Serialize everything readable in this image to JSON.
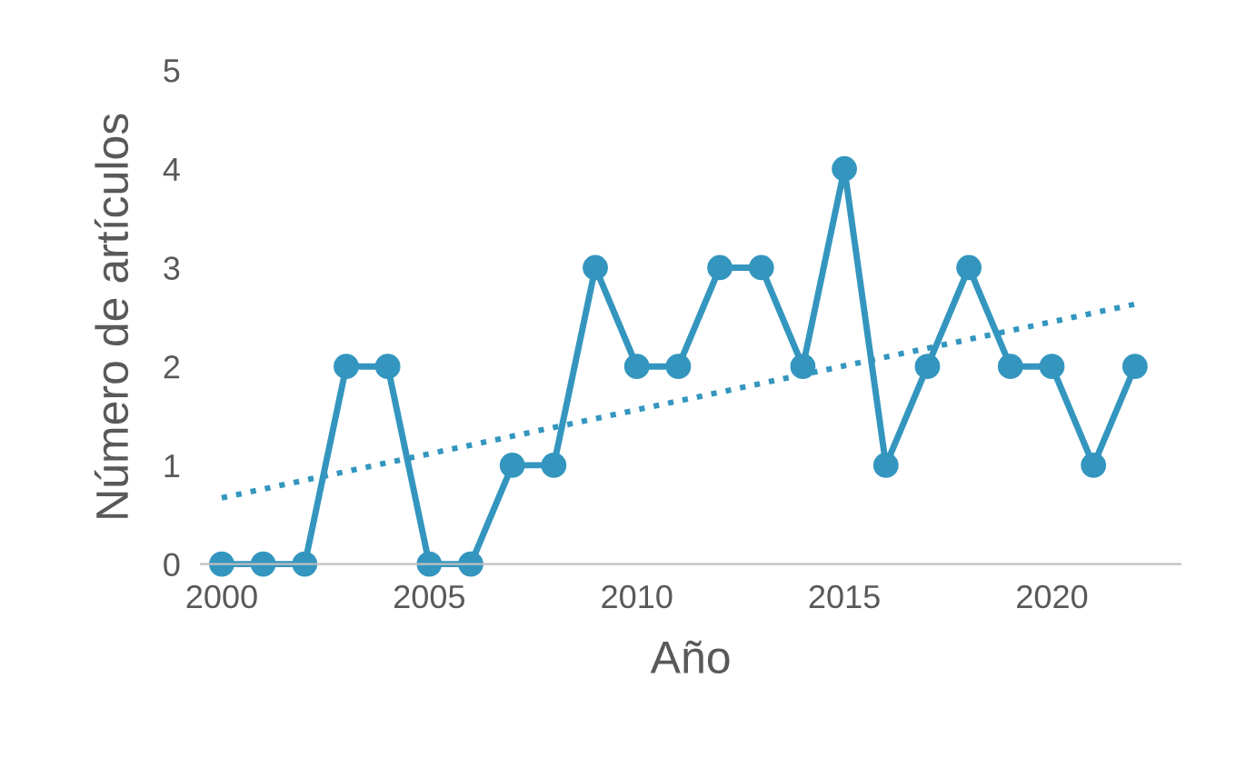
{
  "chart_data": {
    "type": "line",
    "xlabel": "Año",
    "ylabel": "Número de artículos",
    "x": [
      2000,
      2001,
      2002,
      2003,
      2004,
      2005,
      2006,
      2007,
      2008,
      2009,
      2010,
      2011,
      2012,
      2013,
      2014,
      2015,
      2016,
      2017,
      2018,
      2019,
      2020,
      2021,
      2022
    ],
    "series": [
      {
        "color": "#3496bf",
        "values": [
          0,
          0,
          0,
          2,
          2,
          0,
          0,
          1,
          1,
          3,
          2,
          2,
          3,
          3,
          2,
          4,
          1,
          2,
          3,
          2,
          2,
          1,
          2
        ],
        "marker": "circle",
        "line_style": "solid"
      },
      {
        "type": "line",
        "x": [
          2000,
          2022
        ],
        "color": "#3496bf",
        "values": [
          0.67,
          2.63
        ],
        "marker": "none",
        "line_style": "dotted"
      }
    ],
    "xlim": [
      1999.5,
      2023.1
    ],
    "ylim": [
      0,
      5
    ],
    "xticks": [
      2000,
      2005,
      2010,
      2015,
      2020
    ],
    "yticks": [
      0,
      1,
      2,
      3,
      4,
      5
    ],
    "grid": false,
    "legend": false
  }
}
